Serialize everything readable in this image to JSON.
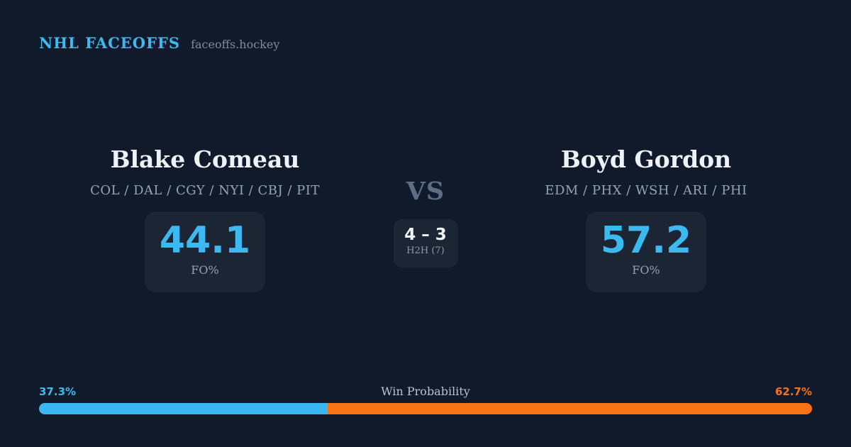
{
  "header": {
    "brand": "NHL FACEOFFS",
    "domain": "faceoffs.hockey"
  },
  "matchup": {
    "vs_label": "VS",
    "h2h": {
      "score": "4 – 3",
      "label": "H2H (7)"
    },
    "player_left": {
      "name": "Blake Comeau",
      "teams": "COL / DAL / CGY / NYI / CBJ / PIT",
      "fo_pct": "44.1",
      "stat_label": "FO%"
    },
    "player_right": {
      "name": "Boyd Gordon",
      "teams": "EDM / PHX / WSH / ARI / PHI",
      "fo_pct": "57.2",
      "stat_label": "FO%"
    }
  },
  "win_probability": {
    "title": "Win Probability",
    "left_pct_label": "37.3%",
    "right_pct_label": "62.7%",
    "left_value": 37.3,
    "right_value": 62.7,
    "left_color": "#3ab6f0",
    "right_color": "#f97316"
  },
  "colors": {
    "background": "#111a2b",
    "card_background": "#1b2534",
    "accent_blue": "#3db9f2",
    "accent_orange": "#f97316",
    "text_primary": "#eef2f7",
    "text_muted": "#94a3b8"
  }
}
